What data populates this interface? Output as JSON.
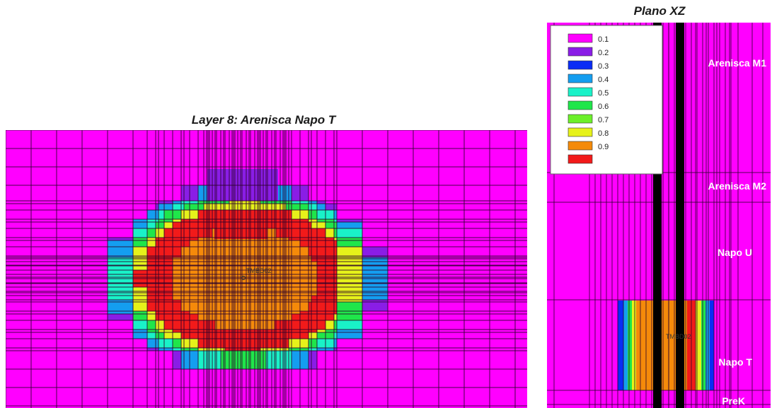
{
  "chart_data": [
    {
      "type": "heatmap",
      "title": "Layer 8: Arenisca Napo T",
      "well_label": "TMBD02",
      "grid_on": true,
      "colors": {
        "background": "#ff00ff",
        "grid": "#2a002a"
      }
    },
    {
      "type": "heatmap",
      "title": "Plano XZ",
      "well_label": "TMBD02",
      "legend_position": "top-left",
      "legend": [
        {
          "label": "0.1",
          "color": "#ff00ff"
        },
        {
          "label": "0.2",
          "color": "#8a1de6"
        },
        {
          "label": "0.3",
          "color": "#0a2cf5"
        },
        {
          "label": "0.4",
          "color": "#149ef0"
        },
        {
          "label": "0.5",
          "color": "#19f2c8"
        },
        {
          "label": "0.6",
          "color": "#1fe64a"
        },
        {
          "label": "0.7",
          "color": "#6cf02a"
        },
        {
          "label": "0.8",
          "color": "#e6f21a"
        },
        {
          "label": "0.9",
          "color": "#f58a0a"
        },
        {
          "label": "",
          "color": "#f21a1a"
        }
      ],
      "zones": [
        "Arenisca M1",
        "Arenisca M2",
        "Napo U",
        "Napo T",
        "PreK"
      ]
    }
  ]
}
